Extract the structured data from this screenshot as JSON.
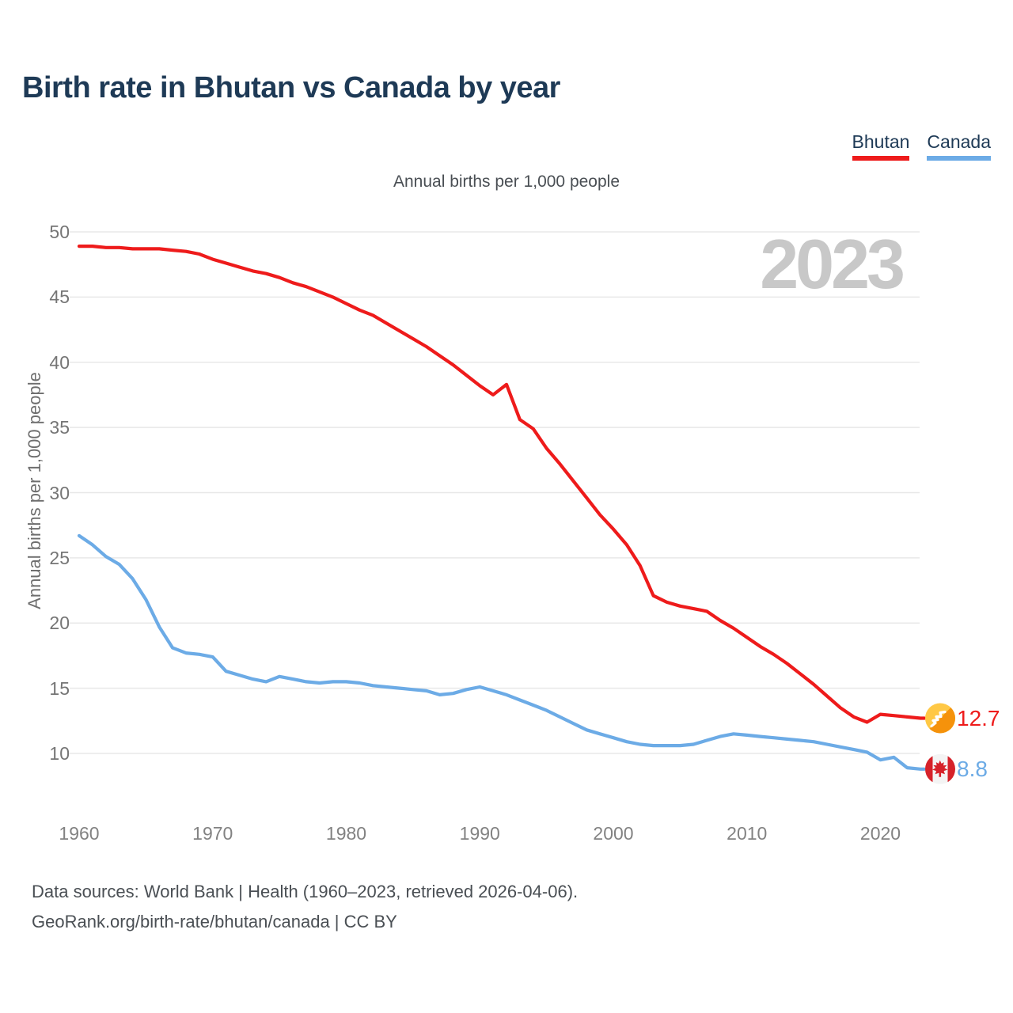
{
  "page": {
    "title": "Birth rate in Bhutan vs Canada by year"
  },
  "subtitle": "Annual births per 1,000 people",
  "watermark": "2023",
  "legend": {
    "items": [
      {
        "label": "Bhutan",
        "color": "#ee1b1b"
      },
      {
        "label": "Canada",
        "color": "#6cabe6"
      }
    ]
  },
  "footer": {
    "line1": "Data sources: World Bank | Health (1960–2023, retrieved 2026-04-06).",
    "line2": "GeoRank.org/birth-rate/bhutan/canada | CC BY"
  },
  "chart_data": {
    "type": "line",
    "title": "Birth rate in Bhutan vs Canada by year",
    "subtitle": "Annual births per 1,000 people",
    "ylabel": "Annual births per 1,000 people",
    "watermark_year": "2023",
    "x_range": [
      1960,
      2023
    ],
    "x_ticks": [
      1960,
      1970,
      1980,
      1990,
      2000,
      2010,
      2020
    ],
    "y_ticks": [
      50,
      45,
      40,
      35,
      30,
      25,
      20,
      15,
      10
    ],
    "ylim": [
      8,
      51
    ],
    "grid": "horizontal",
    "legend_position": "top-right",
    "series": [
      {
        "name": "Bhutan",
        "color": "#ee1b1b",
        "end_label": "12.7",
        "flag": "bhutan",
        "values": [
          48.9,
          48.9,
          48.8,
          48.8,
          48.7,
          48.7,
          48.7,
          48.6,
          48.5,
          48.3,
          47.9,
          47.6,
          47.3,
          47.0,
          46.8,
          46.5,
          46.1,
          45.8,
          45.4,
          45.0,
          44.5,
          44.0,
          43.6,
          43.0,
          42.4,
          41.8,
          41.2,
          40.5,
          39.8,
          39.0,
          38.2,
          37.5,
          38.3,
          35.6,
          34.9,
          33.4,
          32.2,
          30.9,
          29.6,
          28.3,
          27.2,
          26.0,
          24.4,
          22.1,
          21.6,
          21.3,
          21.1,
          20.9,
          20.2,
          19.6,
          18.9,
          18.2,
          17.6,
          16.9,
          16.1,
          15.3,
          14.4,
          13.5,
          12.8,
          12.4,
          13.0,
          12.9,
          12.8,
          12.7
        ]
      },
      {
        "name": "Canada",
        "color": "#6cabe6",
        "end_label": "8.8",
        "flag": "canada",
        "values": [
          26.7,
          26.0,
          25.1,
          24.5,
          23.4,
          21.8,
          19.7,
          18.1,
          17.7,
          17.6,
          17.4,
          16.3,
          16.0,
          15.7,
          15.5,
          15.9,
          15.7,
          15.5,
          15.4,
          15.5,
          15.5,
          15.4,
          15.2,
          15.1,
          15.0,
          14.9,
          14.8,
          14.5,
          14.6,
          14.9,
          15.1,
          14.8,
          14.5,
          14.1,
          13.7,
          13.3,
          12.8,
          12.3,
          11.8,
          11.5,
          11.2,
          10.9,
          10.7,
          10.6,
          10.6,
          10.6,
          10.7,
          11.0,
          11.3,
          11.5,
          11.4,
          11.3,
          11.2,
          11.1,
          11.0,
          10.9,
          10.7,
          10.5,
          10.3,
          10.1,
          9.5,
          9.7,
          8.9,
          8.8
        ]
      }
    ]
  }
}
